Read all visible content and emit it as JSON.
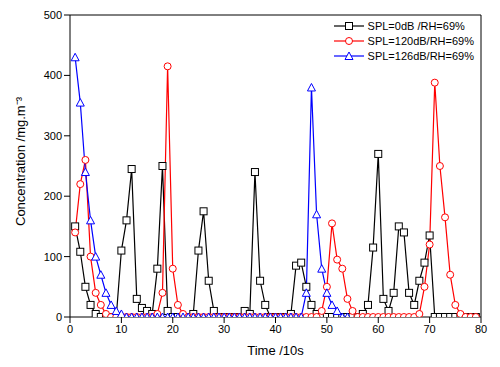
{
  "chart_data": {
    "type": "line",
    "xlabel": "Time /10s",
    "ylabel": "Concentration /mg.m⁻³",
    "xlim": [
      0,
      80
    ],
    "xticks": [
      0,
      10,
      20,
      30,
      40,
      50,
      60,
      70,
      80
    ],
    "ylim": [
      0,
      500
    ],
    "yticks": [
      0,
      100,
      200,
      300,
      400,
      500
    ],
    "grid": false,
    "legend": "upper right",
    "x": [
      1,
      2,
      3,
      4,
      5,
      6,
      7,
      8,
      9,
      10,
      11,
      12,
      13,
      14,
      15,
      16,
      17,
      18,
      19,
      20,
      21,
      22,
      23,
      24,
      25,
      26,
      27,
      28,
      29,
      30,
      31,
      32,
      33,
      34,
      35,
      36,
      37,
      38,
      39,
      40,
      41,
      42,
      43,
      44,
      45,
      46,
      47,
      48,
      49,
      50,
      51,
      52,
      53,
      54,
      55,
      56,
      57,
      58,
      59,
      60,
      61,
      62,
      63,
      64,
      65,
      66,
      67,
      68,
      69,
      70,
      71,
      72,
      73,
      74,
      75,
      76,
      77,
      78,
      79
    ],
    "series": [
      {
        "name": "SPL=0dB /RH=69%",
        "color": "#000000",
        "marker": "square",
        "line_style": "solid",
        "values": [
          150,
          108,
          50,
          20,
          5,
          0,
          0,
          0,
          0,
          110,
          160,
          245,
          30,
          15,
          10,
          5,
          80,
          250,
          10,
          0,
          0,
          0,
          0,
          5,
          110,
          175,
          60,
          10,
          0,
          0,
          0,
          0,
          0,
          10,
          5,
          240,
          60,
          20,
          0,
          0,
          0,
          0,
          5,
          85,
          90,
          50,
          20,
          5,
          0,
          0,
          0,
          0,
          0,
          0,
          0,
          0,
          5,
          20,
          115,
          270,
          30,
          10,
          40,
          150,
          140,
          40,
          20,
          60,
          90,
          135,
          0,
          0,
          0,
          0,
          0,
          0,
          0,
          0,
          0
        ]
      },
      {
        "name": "SPL=120dB/RH=69%",
        "color": "#ff0000",
        "marker": "circle",
        "line_style": "solid",
        "values": [
          140,
          220,
          260,
          100,
          40,
          20,
          5,
          0,
          0,
          0,
          0,
          0,
          0,
          0,
          0,
          0,
          5,
          40,
          415,
          80,
          20,
          5,
          0,
          0,
          0,
          0,
          0,
          0,
          0,
          0,
          0,
          0,
          0,
          0,
          0,
          0,
          0,
          0,
          0,
          0,
          0,
          0,
          0,
          0,
          0,
          0,
          0,
          0,
          10,
          50,
          155,
          95,
          80,
          30,
          10,
          0,
          0,
          0,
          0,
          0,
          0,
          0,
          0,
          0,
          0,
          0,
          0,
          5,
          50,
          120,
          388,
          250,
          165,
          70,
          20,
          5,
          0,
          0,
          0
        ]
      },
      {
        "name": "SPL=126dB/RH=69%",
        "color": "#0000ff",
        "marker": "triangle",
        "line_style": "solid",
        "values": [
          430,
          355,
          240,
          160,
          100,
          70,
          40,
          20,
          10,
          5,
          0,
          0,
          0,
          0,
          0,
          0,
          0,
          0,
          0,
          0,
          0,
          0,
          0,
          0,
          0,
          0,
          0,
          0,
          0,
          0,
          0,
          0,
          0,
          0,
          0,
          0,
          0,
          0,
          0,
          0,
          0,
          0,
          0,
          0,
          0,
          40,
          380,
          170,
          80,
          40,
          20,
          10,
          0,
          0,
          null,
          null,
          null,
          null,
          null,
          null,
          null,
          null,
          null,
          null,
          null,
          null,
          null,
          null,
          null,
          null,
          null,
          null,
          null,
          null,
          null,
          null,
          null,
          null,
          null
        ]
      }
    ]
  }
}
